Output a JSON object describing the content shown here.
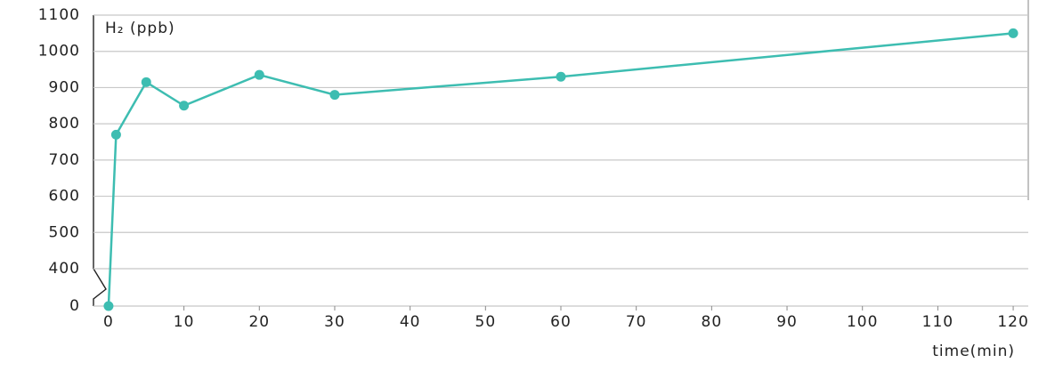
{
  "chart_data": {
    "type": "line",
    "y_label": "H₂ (ppb)",
    "x_label": "time(min)",
    "x": [
      0,
      1,
      5,
      10,
      20,
      30,
      60,
      120
    ],
    "series": [
      {
        "name": "H₂",
        "color": "#3dbdb1",
        "values": [
          0,
          770,
          915,
          850,
          935,
          880,
          930,
          1050
        ]
      }
    ],
    "xlim": [
      -2,
      122
    ],
    "xticks": [
      0,
      10,
      20,
      30,
      40,
      50,
      60,
      70,
      80,
      90,
      100,
      110,
      120
    ],
    "ylim": [
      0,
      1100
    ],
    "yticks": [
      0,
      400,
      500,
      600,
      700,
      800,
      900,
      1000,
      1100
    ],
    "y_break": [
      0,
      400
    ],
    "grid": true
  }
}
